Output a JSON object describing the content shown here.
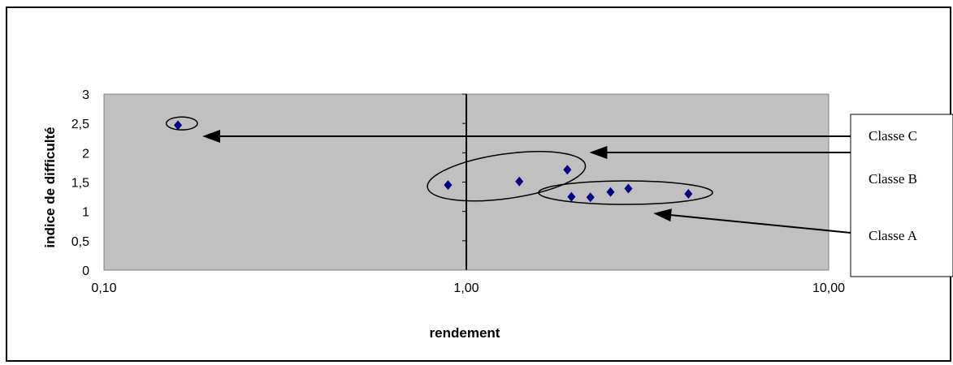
{
  "chart_data": {
    "type": "scatter",
    "title": "",
    "xlabel": "rendement",
    "ylabel": "indice de difficulté",
    "x_scale": "log",
    "xlim": [
      0.1,
      10
    ],
    "ylim": [
      0,
      3
    ],
    "x_tick_labels": [
      "0,10",
      "1,00",
      "10,00"
    ],
    "x_tick_values": [
      0.1,
      1,
      10
    ],
    "y_tick_labels": [
      "0",
      "0,5",
      "1",
      "1,5",
      "2",
      "2,5",
      "3"
    ],
    "y_tick_values": [
      0,
      0.5,
      1,
      1.5,
      2,
      2.5,
      3
    ],
    "grid": false,
    "plot_background": "#c0c0c0",
    "marker_color": "#000080",
    "points": [
      {
        "x": 0.16,
        "y": 2.47
      },
      {
        "x": 0.89,
        "y": 1.45
      },
      {
        "x": 1.4,
        "y": 1.51
      },
      {
        "x": 1.9,
        "y": 1.71
      },
      {
        "x": 1.95,
        "y": 1.25
      },
      {
        "x": 2.2,
        "y": 1.24
      },
      {
        "x": 2.5,
        "y": 1.33
      },
      {
        "x": 2.8,
        "y": 1.39
      },
      {
        "x": 4.1,
        "y": 1.3
      }
    ],
    "annotations": [
      {
        "label": "Classe C",
        "group_center": {
          "x": 0.164,
          "y": 2.5
        },
        "group_radius_x_decades": 0.043,
        "group_radius_y": 0.11
      },
      {
        "label": "Classe B",
        "group_center": {
          "x": 1.29,
          "y": 1.6
        },
        "group_radius_x_decades": 0.22,
        "group_radius_y": 0.38
      },
      {
        "label": "Classe A",
        "group_center": {
          "x": 2.75,
          "y": 1.32
        },
        "group_radius_x_decades": 0.24,
        "group_radius_y": 0.2
      }
    ]
  }
}
